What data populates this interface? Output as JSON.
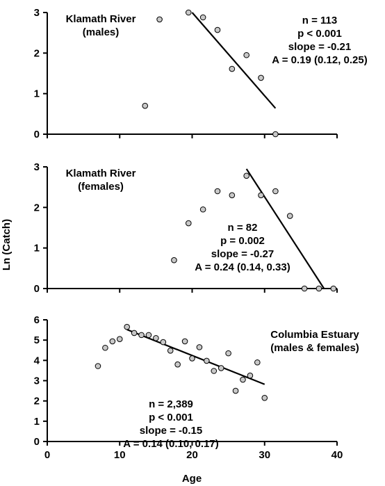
{
  "figure": {
    "ylabel": "Ln (Catch)",
    "xlabel": "Age",
    "x_ticks": [
      "0",
      "10",
      "20",
      "30",
      "40"
    ]
  },
  "chart_data": [
    {
      "type": "scatter",
      "title_lines": [
        "Klamath River",
        "(males)"
      ],
      "stats_lines": [
        "n = 113",
        "p < 0.001",
        "slope = -0.21",
        "A = 0.19 (0.12, 0.25)"
      ],
      "xlim": [
        0,
        40
      ],
      "ylim": [
        0,
        3
      ],
      "y_ticks": [
        "0",
        "1",
        "2",
        "3"
      ],
      "points": [
        {
          "x": 13.5,
          "y": 0.7
        },
        {
          "x": 15.5,
          "y": 2.83
        },
        {
          "x": 19.5,
          "y": 3.0
        },
        {
          "x": 21.5,
          "y": 2.88
        },
        {
          "x": 23.5,
          "y": 2.57
        },
        {
          "x": 25.5,
          "y": 1.61
        },
        {
          "x": 27.5,
          "y": 1.95
        },
        {
          "x": 29.5,
          "y": 1.39
        },
        {
          "x": 31.5,
          "y": 0.0
        }
      ],
      "fit_line": [
        {
          "x": 20.0,
          "y": 3.0
        },
        {
          "x": 31.5,
          "y": 0.64
        }
      ]
    },
    {
      "type": "scatter",
      "title_lines": [
        "Klamath River",
        "(females)"
      ],
      "stats_lines": [
        "n = 82",
        "p = 0.002",
        "slope = -0.27",
        "A = 0.24 (0.14, 0.33)"
      ],
      "xlim": [
        0,
        40
      ],
      "ylim": [
        0,
        3
      ],
      "y_ticks": [
        "0",
        "1",
        "2",
        "3"
      ],
      "points": [
        {
          "x": 17.5,
          "y": 0.7
        },
        {
          "x": 19.5,
          "y": 1.61
        },
        {
          "x": 21.5,
          "y": 1.95
        },
        {
          "x": 23.5,
          "y": 2.4
        },
        {
          "x": 25.5,
          "y": 2.3
        },
        {
          "x": 27.5,
          "y": 2.78
        },
        {
          "x": 29.5,
          "y": 2.3
        },
        {
          "x": 31.5,
          "y": 2.4
        },
        {
          "x": 33.5,
          "y": 1.79
        },
        {
          "x": 35.5,
          "y": 0.0
        },
        {
          "x": 37.5,
          "y": 0.0
        },
        {
          "x": 39.5,
          "y": 0.0
        }
      ],
      "fit_line": [
        {
          "x": 27.5,
          "y": 2.95
        },
        {
          "x": 38.2,
          "y": 0.0
        }
      ]
    },
    {
      "type": "scatter",
      "title_lines": [
        "Columbia Estuary",
        "(males & females)"
      ],
      "stats_lines": [
        "n = 2,389",
        "p < 0.001",
        "slope = -0.15",
        "A = 0.14 (0.10, 0.17)"
      ],
      "xlim": [
        0,
        40
      ],
      "ylim": [
        0,
        6
      ],
      "y_ticks": [
        "0",
        "1",
        "2",
        "3",
        "4",
        "5",
        "6"
      ],
      "points": [
        {
          "x": 7,
          "y": 3.72
        },
        {
          "x": 8,
          "y": 4.62
        },
        {
          "x": 9,
          "y": 4.94
        },
        {
          "x": 10,
          "y": 5.05
        },
        {
          "x": 11,
          "y": 5.65
        },
        {
          "x": 12,
          "y": 5.35
        },
        {
          "x": 13,
          "y": 5.25
        },
        {
          "x": 14,
          "y": 5.25
        },
        {
          "x": 15,
          "y": 5.1
        },
        {
          "x": 16,
          "y": 4.9
        },
        {
          "x": 17,
          "y": 4.48
        },
        {
          "x": 18,
          "y": 3.8
        },
        {
          "x": 19,
          "y": 4.94
        },
        {
          "x": 20,
          "y": 4.1
        },
        {
          "x": 21,
          "y": 4.65
        },
        {
          "x": 22,
          "y": 3.98
        },
        {
          "x": 23,
          "y": 3.48
        },
        {
          "x": 24,
          "y": 3.62
        },
        {
          "x": 25,
          "y": 4.35
        },
        {
          "x": 26,
          "y": 2.5
        },
        {
          "x": 27,
          "y": 3.05
        },
        {
          "x": 28,
          "y": 3.25
        },
        {
          "x": 29,
          "y": 3.9
        },
        {
          "x": 30,
          "y": 2.15
        }
      ],
      "fit_line": [
        {
          "x": 11.0,
          "y": 5.52
        },
        {
          "x": 30.0,
          "y": 2.82
        }
      ]
    }
  ]
}
